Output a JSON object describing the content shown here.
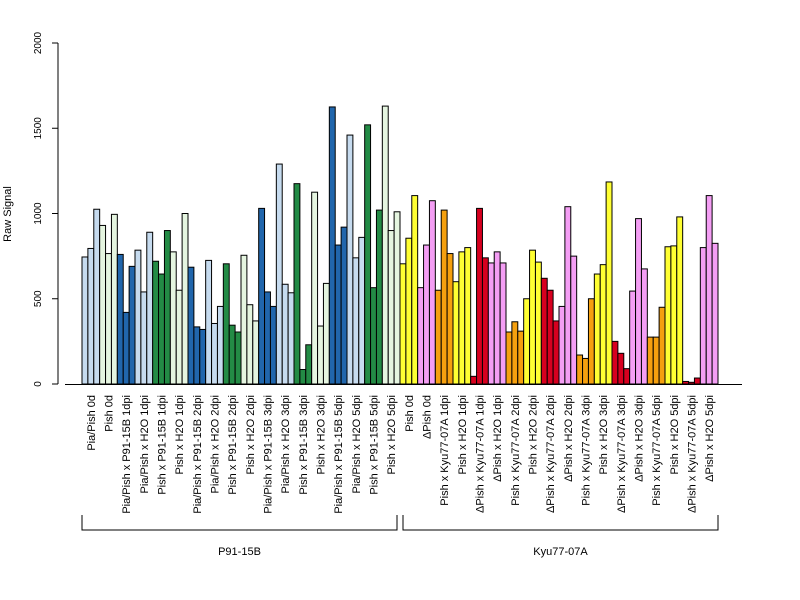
{
  "chart_data": {
    "type": "bar",
    "ylabel": "Raw Signal",
    "ylim": [
      0,
      2000
    ],
    "yticks": [
      0,
      500,
      1000,
      1500,
      2000
    ],
    "grid": false,
    "categories": [
      "Pia/Pish 0d",
      "Pish 0d",
      "Pia/Pish x P91-15B 1dpi",
      "Pia/Pish x H2O 1dpi",
      "Pish x P91-15B 1dpi",
      "Pish x H2O 1dpi",
      "Pia/Pish x P91-15B 2dpi",
      "Pia/Pish x H2O 2dpi",
      "Pish x P91-15B 2dpi",
      "Pish x H2O 2dpi",
      "Pia/Pish x P91-15B 3dpi",
      "Pia/Pish x H2O 3dpi",
      "Pish x P91-15B 3dpi",
      "Pish x H2O 3dpi",
      "Pia/Pish x P91-15B 5dpi",
      "Pia/Pish x H2O 5dpi",
      "Pish x P91-15B 5dpi",
      "Pish x H2O 5dpi",
      "Pish 0d",
      "ΔPish 0d",
      "Pish x Kyu77-07A 1dpi",
      "Pish x H2O 1dpi",
      "ΔPish x Kyu77-07A 1dpi",
      "ΔPish x H2O 1dpi",
      "Pish x Kyu77-07A 2dpi",
      "Pish x H2O 2dpi",
      "ΔPish x Kyu77-07A 2dpi",
      "ΔPish x H2O 2dpi",
      "Pish x Kyu77-07A 3dpi",
      "Pish x H2O 3dpi",
      "ΔPish x Kyu77-07A 3dpi",
      "ΔPish x H2O 3dpi",
      "Pish x Kyu77-07A 5dpi",
      "Pish x H2O 5dpi",
      "ΔPish x Kyu77-07A 5dpi",
      "ΔPish x H2O 5dpi"
    ],
    "bar_colors": [
      "#c6dbef",
      "#e5f5e0",
      "#2166ac",
      "#c6dbef",
      "#238b45",
      "#e5f5e0",
      "#2166ac",
      "#c6dbef",
      "#238b45",
      "#e5f5e0",
      "#2166ac",
      "#c6dbef",
      "#238b45",
      "#e5f5e0",
      "#2166ac",
      "#c6dbef",
      "#238b45",
      "#e5f5e0",
      "#ffff33",
      "#f49ef4",
      "#f5a00f",
      "#ffff33",
      "#d7001f",
      "#f49ef4",
      "#f5a00f",
      "#ffff33",
      "#d7001f",
      "#f49ef4",
      "#f5a00f",
      "#ffff33",
      "#d7001f",
      "#f49ef4",
      "#f5a00f",
      "#ffff33",
      "#d7001f",
      "#f49ef4"
    ],
    "values": [
      [
        745,
        795,
        1025
      ],
      [
        930,
        765,
        995
      ],
      [
        760,
        420,
        690
      ],
      [
        785,
        540,
        890
      ],
      [
        720,
        645,
        900
      ],
      [
        775,
        550,
        1000
      ],
      [
        685,
        335,
        320
      ],
      [
        725,
        355,
        455
      ],
      [
        705,
        345,
        305
      ],
      [
        755,
        465,
        370
      ],
      [
        1030,
        540,
        455
      ],
      [
        1290,
        585,
        535
      ],
      [
        1175,
        85,
        230
      ],
      [
        1125,
        340,
        590
      ],
      [
        1625,
        815,
        920
      ],
      [
        1460,
        740,
        860
      ],
      [
        1520,
        565,
        1020
      ],
      [
        1630,
        900,
        1010
      ],
      [
        705,
        855,
        1105
      ],
      [
        565,
        815,
        1075
      ],
      [
        550,
        1020,
        765
      ],
      [
        600,
        775,
        800
      ],
      [
        45,
        1030,
        740
      ],
      [
        710,
        775,
        710
      ],
      [
        305,
        365,
        310
      ],
      [
        500,
        785,
        715
      ],
      [
        620,
        550,
        370
      ],
      [
        455,
        1040,
        750
      ],
      [
        170,
        150,
        500
      ],
      [
        645,
        700,
        1185
      ],
      [
        250,
        180,
        90
      ],
      [
        545,
        970,
        675
      ],
      [
        275,
        275,
        450
      ],
      [
        805,
        810,
        980
      ],
      [
        15,
        10,
        35
      ],
      [
        800,
        1105,
        825
      ]
    ],
    "groups": [
      {
        "name": "P91-15B",
        "from": 0,
        "to": 17
      },
      {
        "name": "Kyu77-07A",
        "from": 18,
        "to": 35
      }
    ]
  }
}
